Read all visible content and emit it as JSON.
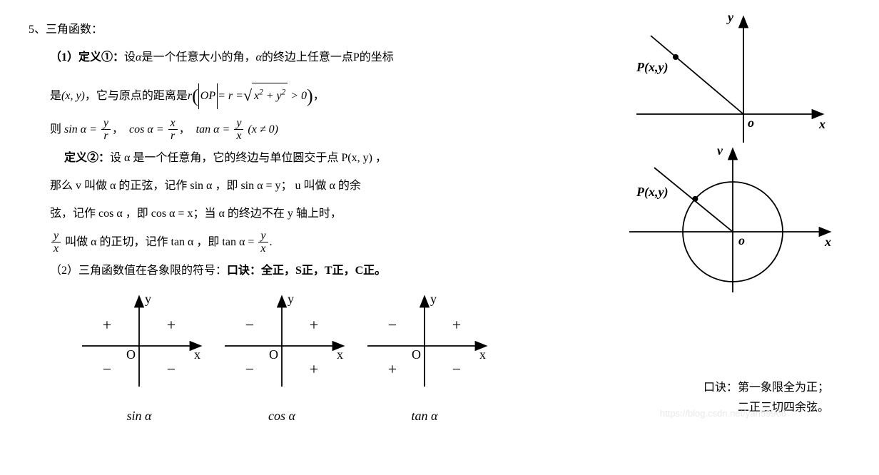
{
  "heading": {
    "num": "5、",
    "title": "三角函数："
  },
  "def1": {
    "label": "（1）定义①：",
    "text_a": "设",
    "alpha1": "α",
    "text_b": "是一个任意大小的角，",
    "alpha2": "α",
    "text_c": "的终边上任意一点P的坐标",
    "line2_a": "是",
    "coord": "(x, y)",
    "line2_b": "，它与原点的距离是",
    "r": "r",
    "op_abs": "OP",
    "eq_r": "= r =",
    "sqrt_body": "x² + y²",
    "gt0": "> 0",
    "comma": "，",
    "line3_a": "则",
    "sin": "sin α =",
    "sin_num": "y",
    "sin_den": "r",
    "cos": "cos α =",
    "cos_num": "x",
    "cos_den": "r",
    "tan": "tan α =",
    "tan_num": "y",
    "tan_den": "x",
    "tan_cond": "(x ≠ 0)"
  },
  "def2": {
    "label": "定义②：",
    "l1": "设 α 是一个任意角，它的终边与单位圆交于点 P(x, y) ，",
    "l2": "那么 v 叫做 α 的正弦，记作 sin α ，即 sin α = y；  u 叫做 α 的余",
    "l3": "弦，记作 cos α ，即 cos α = x；当 α 的终边不在 y 轴上时，",
    "l4_a": "叫做 α 的正切，记作 tan α ，即 tan α =",
    "frac1_num": "y",
    "frac1_den": "x",
    "frac2_num": "y",
    "frac2_den": "x",
    "period": "."
  },
  "part2": {
    "label": "（2）三角函数值在各象限的符号：",
    "bold": "口诀：全正，S正，T正，C正。"
  },
  "signs": {
    "sin": {
      "q1": "+",
      "q2": "+",
      "q3": "−",
      "q4": "−",
      "label": "sin α"
    },
    "cos": {
      "q1": "+",
      "q2": "−",
      "q3": "−",
      "q4": "+",
      "label": "cos α"
    },
    "tan": {
      "q1": "+",
      "q2": "−",
      "q3": "+",
      "q4": "−",
      "label": "tan α"
    }
  },
  "axis": {
    "x": "x",
    "y": "y",
    "O": "O",
    "o_it": "o",
    "P": "P(x,y)",
    "v": "v"
  },
  "mnemonic": {
    "l1": "口诀：第一象限全为正；",
    "l2": "二正三切四余弦。"
  },
  "style": {
    "stroke": "#000000",
    "stroke_w": "1.8",
    "font_axis": "italic 18px Times New Roman",
    "font_axis_bi": "italic bold 18px Times New Roman",
    "font_sign": "22px Times New Roman"
  },
  "watermark": "https://blog.csdn.net/yan59966"
}
